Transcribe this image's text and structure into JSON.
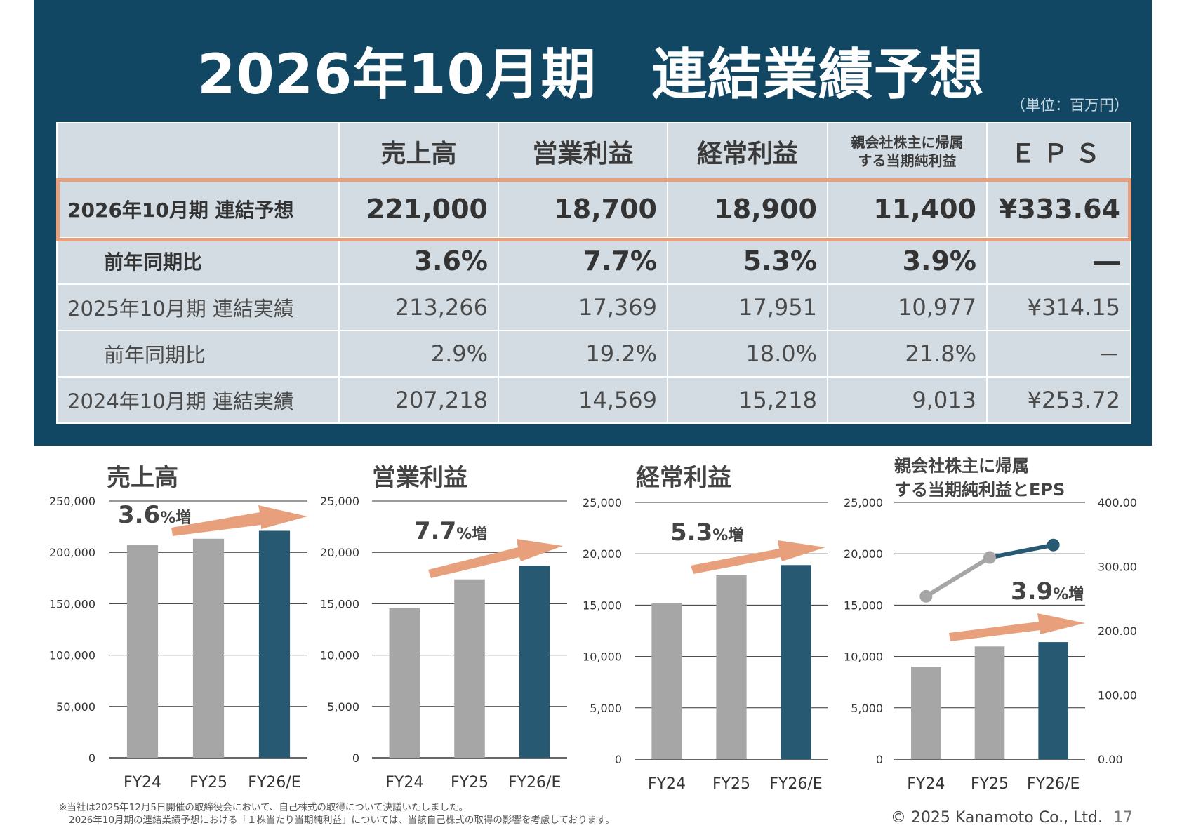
{
  "title": "2026年10月期　連結業績予想",
  "unit": "（単位：百万円）",
  "table": {
    "headers": [
      "",
      "売上高",
      "営業利益",
      "経常利益",
      "親会社株主に帰属する当期純利益",
      "ＥＰＳ"
    ],
    "header_net_line1": "親会社株主に帰属",
    "header_net_line2": "する当期純利益",
    "rows": [
      {
        "label": "2026年10月期 連結予想",
        "cells": [
          "221,000",
          "18,700",
          "18,900",
          "11,400",
          "¥333.64"
        ]
      },
      {
        "label": "前年同期比",
        "cells": [
          "3.6%",
          "7.7%",
          "5.3%",
          "3.9%",
          "―"
        ]
      },
      {
        "label": "2025年10月期 連結実績",
        "cells": [
          "213,266",
          "17,369",
          "17,951",
          "10,977",
          "¥314.15"
        ]
      },
      {
        "label": "前年同期比",
        "cells": [
          "2.9%",
          "19.2%",
          "18.0%",
          "21.8%",
          "－"
        ]
      },
      {
        "label": "2024年10月期 連結実績",
        "cells": [
          "207,218",
          "14,569",
          "15,218",
          "9,013",
          "¥253.72"
        ]
      }
    ]
  },
  "colors": {
    "navy": "#124763",
    "bar_grey": "#a6a6a6",
    "bar_dark": "#275a72",
    "arrow": "#e8a07c",
    "highlight": "#e8a07c"
  },
  "chart_data": [
    {
      "type": "bar",
      "title": "売上高",
      "categories": [
        "FY24",
        "FY25",
        "FY26/E"
      ],
      "values": [
        207218,
        213266,
        221000
      ],
      "ylim": [
        0,
        250000
      ],
      "yticks": [
        "0",
        "50,000",
        "100,000",
        "150,000",
        "200,000",
        "250,000"
      ],
      "growth_num": "3.6",
      "growth_suffix": "%増"
    },
    {
      "type": "bar",
      "title": "営業利益",
      "categories": [
        "FY24",
        "FY25",
        "FY26/E"
      ],
      "values": [
        14569,
        17369,
        18700
      ],
      "ylim": [
        0,
        25000
      ],
      "yticks": [
        "0",
        "5,000",
        "10,000",
        "15,000",
        "20,000",
        "25,000"
      ],
      "growth_num": "7.7",
      "growth_suffix": "%増"
    },
    {
      "type": "bar",
      "title": "経常利益",
      "categories": [
        "FY24",
        "FY25",
        "FY26/E"
      ],
      "values": [
        15218,
        17951,
        18900
      ],
      "ylim": [
        0,
        25000
      ],
      "yticks": [
        "0",
        "5,000",
        "10,000",
        "15,000",
        "20,000",
        "25,000"
      ],
      "growth_num": "5.3",
      "growth_suffix": "%増"
    },
    {
      "type": "bar",
      "title": "親会社株主に帰属する当期純利益とEPS",
      "title_line1": "親会社株主に帰属",
      "title_line2": "する当期純利益とEPS",
      "categories": [
        "FY24",
        "FY25",
        "FY26/E"
      ],
      "values": [
        9013,
        10977,
        11400
      ],
      "ylim": [
        0,
        25000
      ],
      "yticks": [
        "0",
        "5,000",
        "10,000",
        "15,000",
        "20,000",
        "25,000"
      ],
      "eps": [
        253.72,
        314.15,
        333.64
      ],
      "eps_ylim": [
        0,
        400
      ],
      "eps_ticks": [
        "0.00",
        "100.00",
        "200.00",
        "300.00",
        "400.00"
      ],
      "growth_num": "3.9",
      "growth_suffix": "%増"
    }
  ],
  "footnote_line1": "※当社は2025年12月5日開催の取締役会において、自己株式の取得について決議いたしました。",
  "footnote_line2": "2026年10月期の連結業績予想における「１株当たり当期純利益」については、当該自己株式の取得の影響を考慮しております。",
  "copyright": "© 2025 Kanamoto Co., Ltd.",
  "page_number": "17"
}
